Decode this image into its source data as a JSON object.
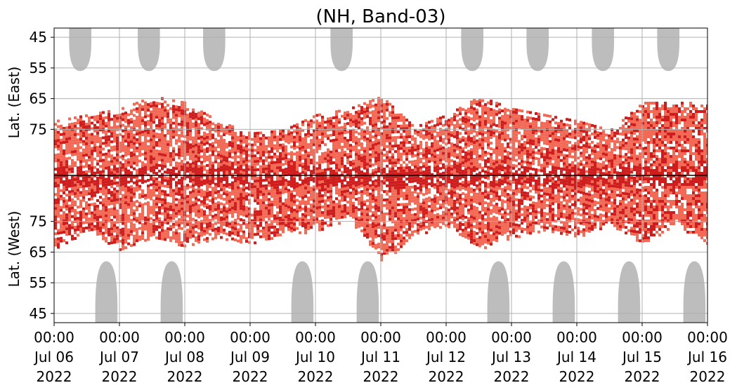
{
  "chart_data": {
    "type": "heatmap",
    "title": "(NH, Band-03)",
    "ylabel_top": "Lat. (East)",
    "ylabel_bottom": "Lat. (West)",
    "yticks_top": [
      "45",
      "55",
      "65",
      "75"
    ],
    "yticks_bottom": [
      "75",
      "65",
      "55",
      "45"
    ],
    "ytick_values_top": [
      45,
      55,
      65,
      75
    ],
    "ytick_values_bottom": [
      75,
      65,
      55,
      45
    ],
    "xticks": [
      {
        "time": "00:00",
        "date": "Jul 06",
        "year": "2022"
      },
      {
        "time": "00:00",
        "date": "Jul 07",
        "year": "2022"
      },
      {
        "time": "00:00",
        "date": "Jul 08",
        "year": "2022"
      },
      {
        "time": "00:00",
        "date": "Jul 09",
        "year": "2022"
      },
      {
        "time": "00:00",
        "date": "Jul 10",
        "year": "2022"
      },
      {
        "time": "00:00",
        "date": "Jul 11",
        "year": "2022"
      },
      {
        "time": "00:00",
        "date": "Jul 12",
        "year": "2022"
      },
      {
        "time": "00:00",
        "date": "Jul 13",
        "year": "2022"
      },
      {
        "time": "00:00",
        "date": "Jul 14",
        "year": "2022"
      },
      {
        "time": "00:00",
        "date": "Jul 15",
        "year": "2022"
      },
      {
        "time": "00:00",
        "date": "Jul 16",
        "year": "2022"
      }
    ],
    "xlim": [
      "2022-07-06 00:00",
      "2022-07-16 00:00"
    ],
    "lat_range": [
      40,
      90
    ],
    "grid": true,
    "colors": {
      "occurrence_low": "#f26a55",
      "occurrence_high": "#cf1c1c",
      "no_data": "#bdbdbd",
      "center_line": "#000000",
      "grid": "#b0b0b0"
    },
    "no_data_regions": [
      {
        "hemisphere": "east",
        "center_day": 0.4,
        "half_width_day": 0.17,
        "min_lat": 56
      },
      {
        "hemisphere": "east",
        "center_day": 1.45,
        "half_width_day": 0.17,
        "min_lat": 56
      },
      {
        "hemisphere": "east",
        "center_day": 2.45,
        "half_width_day": 0.17,
        "min_lat": 56
      },
      {
        "hemisphere": "east",
        "center_day": 4.4,
        "half_width_day": 0.17,
        "min_lat": 56
      },
      {
        "hemisphere": "east",
        "center_day": 6.4,
        "half_width_day": 0.17,
        "min_lat": 56
      },
      {
        "hemisphere": "east",
        "center_day": 7.4,
        "half_width_day": 0.17,
        "min_lat": 56
      },
      {
        "hemisphere": "east",
        "center_day": 8.4,
        "half_width_day": 0.17,
        "min_lat": 56
      },
      {
        "hemisphere": "east",
        "center_day": 9.4,
        "half_width_day": 0.17,
        "min_lat": 56
      },
      {
        "hemisphere": "west",
        "center_day": 0.8,
        "half_width_day": 0.17,
        "min_lat": 62
      },
      {
        "hemisphere": "west",
        "center_day": 1.8,
        "half_width_day": 0.17,
        "min_lat": 62
      },
      {
        "hemisphere": "west",
        "center_day": 3.8,
        "half_width_day": 0.17,
        "min_lat": 62
      },
      {
        "hemisphere": "west",
        "center_day": 4.8,
        "half_width_day": 0.17,
        "min_lat": 62
      },
      {
        "hemisphere": "west",
        "center_day": 6.8,
        "half_width_day": 0.17,
        "min_lat": 62
      },
      {
        "hemisphere": "west",
        "center_day": 7.8,
        "half_width_day": 0.17,
        "min_lat": 62
      },
      {
        "hemisphere": "west",
        "center_day": 8.8,
        "half_width_day": 0.17,
        "min_lat": 62
      },
      {
        "hemisphere": "west",
        "center_day": 9.8,
        "half_width_day": 0.17,
        "min_lat": 62
      }
    ],
    "occurrence_envelope": {
      "day": [
        0,
        0.5,
        1,
        1.5,
        2,
        2.5,
        3,
        3.5,
        4,
        4.5,
        5,
        5.5,
        6,
        6.5,
        7,
        7.5,
        8,
        8.5,
        9,
        9.5,
        10
      ],
      "east_min_lat": [
        72,
        70,
        68,
        64,
        66,
        72,
        76,
        75,
        70,
        68,
        64,
        74,
        70,
        64,
        68,
        70,
        72,
        75,
        66,
        66,
        66
      ],
      "west_min_lat": [
        66,
        72,
        66,
        70,
        67,
        70,
        68,
        71,
        72,
        76,
        62,
        70,
        74,
        66,
        70,
        72,
        70,
        74,
        68,
        74,
        68
      ]
    }
  }
}
